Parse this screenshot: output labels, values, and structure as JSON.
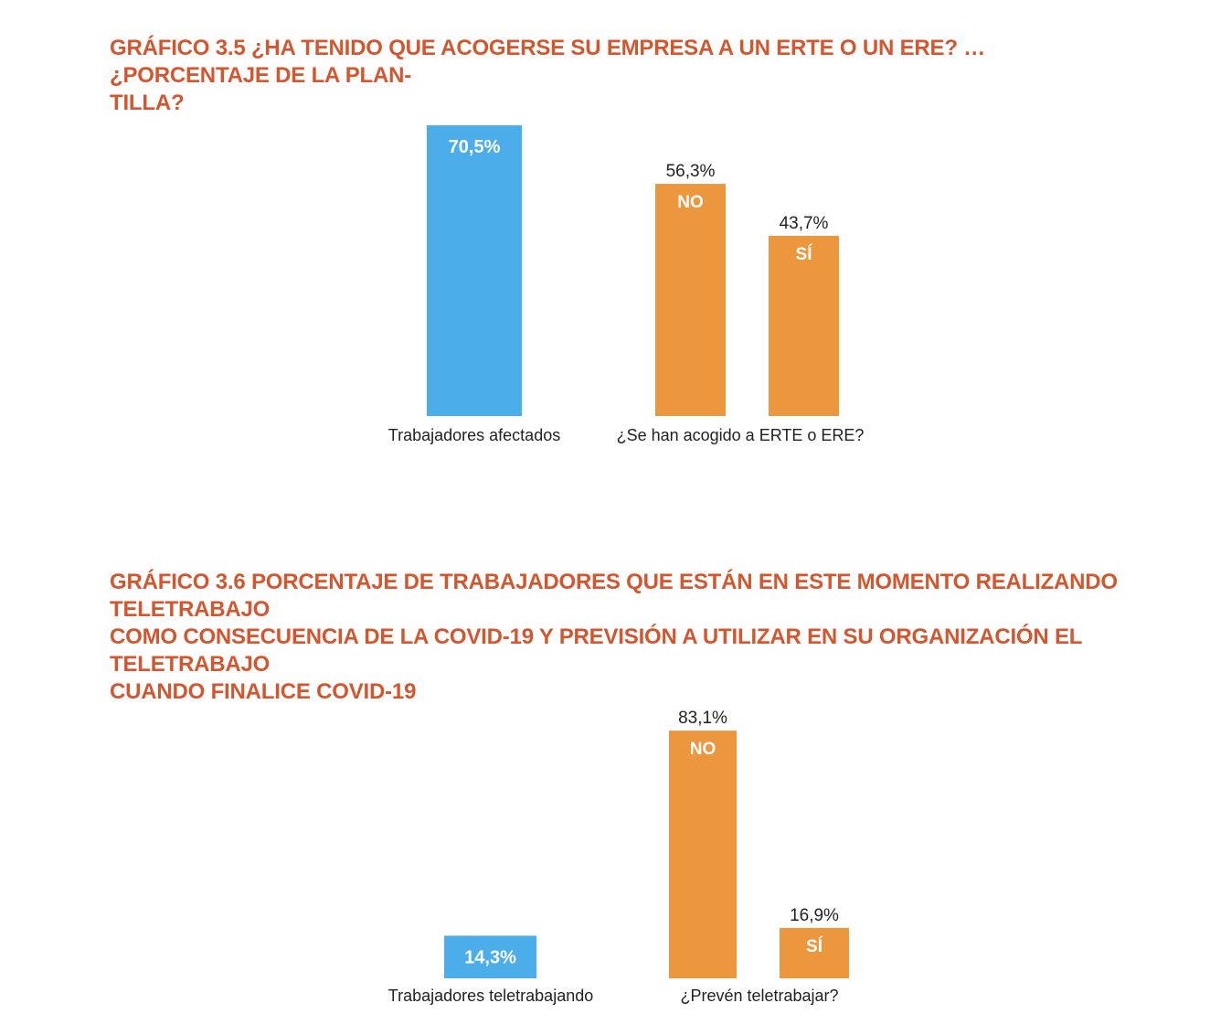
{
  "colors": {
    "title": "#d4562f",
    "blue": "#4badea",
    "orange": "#ec973e",
    "text": "#222222",
    "bar_label": "#ffffff"
  },
  "chart_data": [
    {
      "type": "bar",
      "title": "GRÁFICO 3.5 ¿HA TENIDO QUE ACOGERSE SU EMPRESA A UN ERTE O UN ERE? … ¿PORCENTAJE DE LA PLAN-\nTILLA?",
      "ylim": [
        0,
        100
      ],
      "grid": false,
      "groups": [
        {
          "label": "Trabajadores afectados",
          "bars": [
            {
              "name": "",
              "value": 70.5,
              "value_label": "70,5%",
              "color": "blue"
            }
          ]
        },
        {
          "label": "¿Se han acogido a ERTE o ERE?",
          "bars": [
            {
              "name": "NO",
              "value": 56.3,
              "value_label": "56,3%",
              "color": "orange"
            },
            {
              "name": "SÍ",
              "value": 43.7,
              "value_label": "43,7%",
              "color": "orange"
            }
          ]
        }
      ]
    },
    {
      "type": "bar",
      "title": "GRÁFICO 3.6 PORCENTAJE DE TRABAJADORES QUE ESTÁN EN ESTE MOMENTO REALIZANDO TELETRABAJO\nCOMO CONSECUENCIA DE LA COVID-19 Y PREVISIÓN A UTILIZAR EN SU ORGANIZACIÓN EL TELETRABAJO\nCUANDO FINALICE COVID-19",
      "ylim": [
        0,
        100
      ],
      "grid": false,
      "groups": [
        {
          "label": "Trabajadores teletrabajando",
          "bars": [
            {
              "name": "",
              "value": 14.3,
              "value_label": "14,3%",
              "color": "blue"
            }
          ]
        },
        {
          "label": "¿Prevén teletrabajar?",
          "bars": [
            {
              "name": "NO",
              "value": 83.1,
              "value_label": "83,1%",
              "color": "orange"
            },
            {
              "name": "SÍ",
              "value": 16.9,
              "value_label": "16,9%",
              "color": "orange"
            }
          ]
        }
      ]
    }
  ]
}
